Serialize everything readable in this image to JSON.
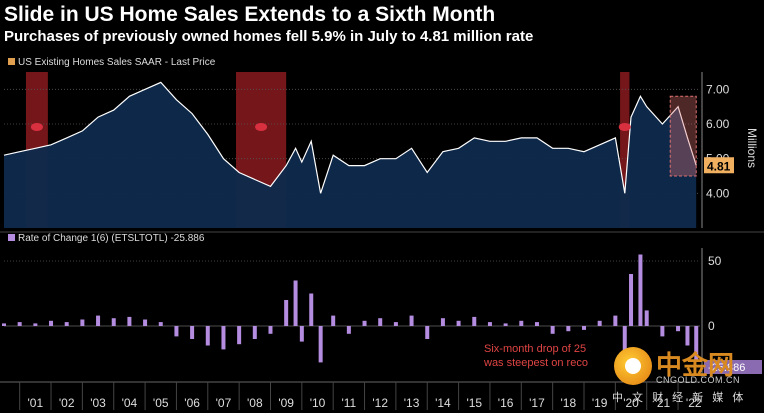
{
  "title": "Slide in US Home Sales Extends to a Sixth Month",
  "subtitle": "Purchases of previously owned homes fell 5.9% in July to 4.81 million rate",
  "colors": {
    "background": "#000000",
    "area_fill": "#0e2a4d",
    "line": "#ffffff",
    "recession_band": "#8a1a1f",
    "highlight_box": "#e07070",
    "last_label_bg": "#f0b060",
    "bars": "#b48ce0",
    "annotation": "#e04444"
  },
  "chart_data": [
    {
      "type": "area",
      "legend": "US Existing Homes Sales SAAR - Last Price",
      "ylabel": "Millions",
      "ylim": [
        3.0,
        7.5
      ],
      "yticks": [
        "4.00",
        "5.00",
        "6.00",
        "7.00"
      ],
      "last_value_label": "4.81",
      "x": [
        2000.5,
        2001.0,
        2001.5,
        2002.0,
        2002.5,
        2003.0,
        2003.5,
        2004.0,
        2004.5,
        2005.0,
        2005.5,
        2006.0,
        2006.5,
        2007.0,
        2007.5,
        2008.0,
        2008.5,
        2009.0,
        2009.5,
        2009.8,
        2010.0,
        2010.3,
        2010.6,
        2011.0,
        2011.5,
        2012.0,
        2012.5,
        2013.0,
        2013.5,
        2014.0,
        2014.5,
        2015.0,
        2015.5,
        2016.0,
        2016.5,
        2017.0,
        2017.5,
        2018.0,
        2018.5,
        2019.0,
        2019.5,
        2020.0,
        2020.3,
        2020.5,
        2020.8,
        2021.0,
        2021.5,
        2022.0,
        2022.3,
        2022.58
      ],
      "values": [
        5.1,
        5.2,
        5.3,
        5.4,
        5.6,
        5.8,
        6.2,
        6.4,
        6.8,
        7.0,
        7.2,
        6.7,
        6.3,
        5.7,
        5.0,
        4.6,
        4.4,
        4.2,
        4.8,
        5.3,
        4.9,
        5.5,
        4.0,
        5.1,
        4.8,
        4.8,
        5.0,
        5.0,
        5.3,
        4.6,
        5.2,
        5.3,
        5.6,
        5.5,
        5.5,
        5.6,
        5.6,
        5.3,
        5.3,
        5.2,
        5.4,
        5.6,
        4.0,
        6.2,
        6.8,
        6.5,
        6.0,
        6.5,
        5.6,
        4.81
      ]
    },
    {
      "type": "bar",
      "legend": "Rate of Change 1(6) (ETSLTOTL) -25.886",
      "yticks": [
        "50",
        "0"
      ],
      "ylim": [
        -40,
        60
      ],
      "last_value_label": "-25.886",
      "annotation": [
        "Six-month drop of 25",
        "was steepest on reco"
      ],
      "x": [
        2000.5,
        2001.0,
        2001.5,
        2002.0,
        2002.5,
        2003.0,
        2003.5,
        2004.0,
        2004.5,
        2005.0,
        2005.5,
        2006.0,
        2006.5,
        2007.0,
        2007.5,
        2008.0,
        2008.5,
        2009.0,
        2009.5,
        2009.8,
        2010.0,
        2010.3,
        2010.6,
        2011.0,
        2011.5,
        2012.0,
        2012.5,
        2013.0,
        2013.5,
        2014.0,
        2014.5,
        2015.0,
        2015.5,
        2016.0,
        2016.5,
        2017.0,
        2017.5,
        2018.0,
        2018.5,
        2019.0,
        2019.5,
        2020.0,
        2020.3,
        2020.5,
        2020.8,
        2021.0,
        2021.5,
        2022.0,
        2022.3,
        2022.58
      ],
      "values": [
        2,
        3,
        2,
        4,
        3,
        5,
        8,
        6,
        7,
        5,
        3,
        -8,
        -10,
        -15,
        -18,
        -14,
        -10,
        -6,
        20,
        35,
        -12,
        25,
        -28,
        8,
        -6,
        4,
        6,
        3,
        8,
        -10,
        6,
        4,
        7,
        3,
        2,
        4,
        3,
        -6,
        -4,
        -3,
        4,
        8,
        -25,
        40,
        55,
        12,
        -8,
        -4,
        -15,
        -26
      ]
    }
  ],
  "shaded_periods": [
    [
      2001.2,
      2001.9
    ],
    [
      2007.9,
      2009.5
    ],
    [
      2020.15,
      2020.45
    ]
  ],
  "highlight_period": [
    2021.75,
    2022.58
  ],
  "xaxis_labels": [
    "'01",
    "'02",
    "'03",
    "'04",
    "'05",
    "'06",
    "'07",
    "'08",
    "'09",
    "'10",
    "'11",
    "'12",
    "'13",
    "'14",
    "'15",
    "'16",
    "'17",
    "'18",
    "'19",
    "'20",
    "'21",
    "'22"
  ],
  "logo": {
    "brand": "中金网",
    "domain": "CNGOLD.COM.CN",
    "cn": "中 文 财 经 新 媒 体"
  }
}
